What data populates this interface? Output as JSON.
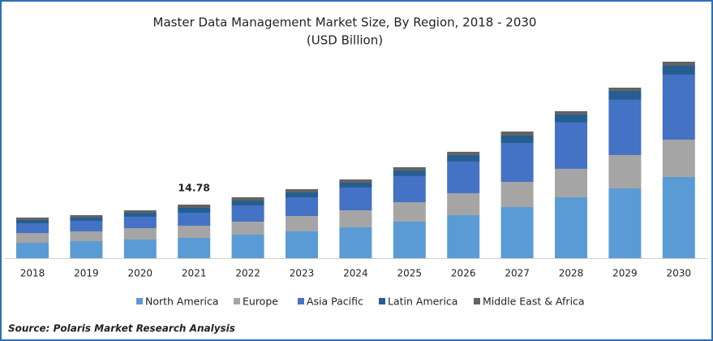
{
  "chart_data": {
    "type": "stacked_bar",
    "title": "Master Data Management Market Size, By Region, 2018 - 2030",
    "subtitle": "(USD Billion)",
    "source": "Source: Polaris  Market Research Analysis",
    "categories": [
      "2018",
      "2019",
      "2020",
      "2021",
      "2022",
      "2023",
      "2024",
      "2025",
      "2026",
      "2027",
      "2028",
      "2029",
      "2030"
    ],
    "series": [
      {
        "name": "North America",
        "color": "#5b9bd5",
        "values": [
          4.25,
          4.7,
          5.15,
          5.6,
          6.49,
          7.39,
          8.51,
          10.08,
          11.87,
          14.1,
          16.8,
          19.26,
          22.39
        ]
      },
      {
        "name": "Europe",
        "color": "#a5a5a5",
        "values": [
          2.69,
          2.69,
          3.13,
          3.36,
          3.58,
          4.25,
          4.7,
          5.37,
          6.05,
          6.94,
          7.84,
          9.18,
          10.3
        ]
      },
      {
        "name": "Asia Pacific",
        "color": "#4472c4",
        "values": [
          2.69,
          2.91,
          3.13,
          3.58,
          4.48,
          5.15,
          6.27,
          7.17,
          8.73,
          10.75,
          12.76,
          15.23,
          17.91
        ]
      },
      {
        "name": "Latin America",
        "color": "#255e91",
        "values": [
          0.9,
          0.9,
          1.12,
          1.34,
          1.34,
          1.34,
          1.34,
          1.57,
          1.79,
          2.02,
          2.24,
          2.46,
          2.46
        ]
      },
      {
        "name": "Middle East & Africa",
        "color": "#636363",
        "values": [
          0.67,
          0.67,
          0.67,
          0.9,
          0.9,
          0.9,
          0.9,
          0.9,
          0.9,
          1.12,
          0.9,
          0.9,
          1.12
        ]
      }
    ],
    "total_labels": [
      null,
      null,
      null,
      14.78,
      null,
      null,
      null,
      null,
      null,
      null,
      null,
      null,
      null
    ]
  }
}
